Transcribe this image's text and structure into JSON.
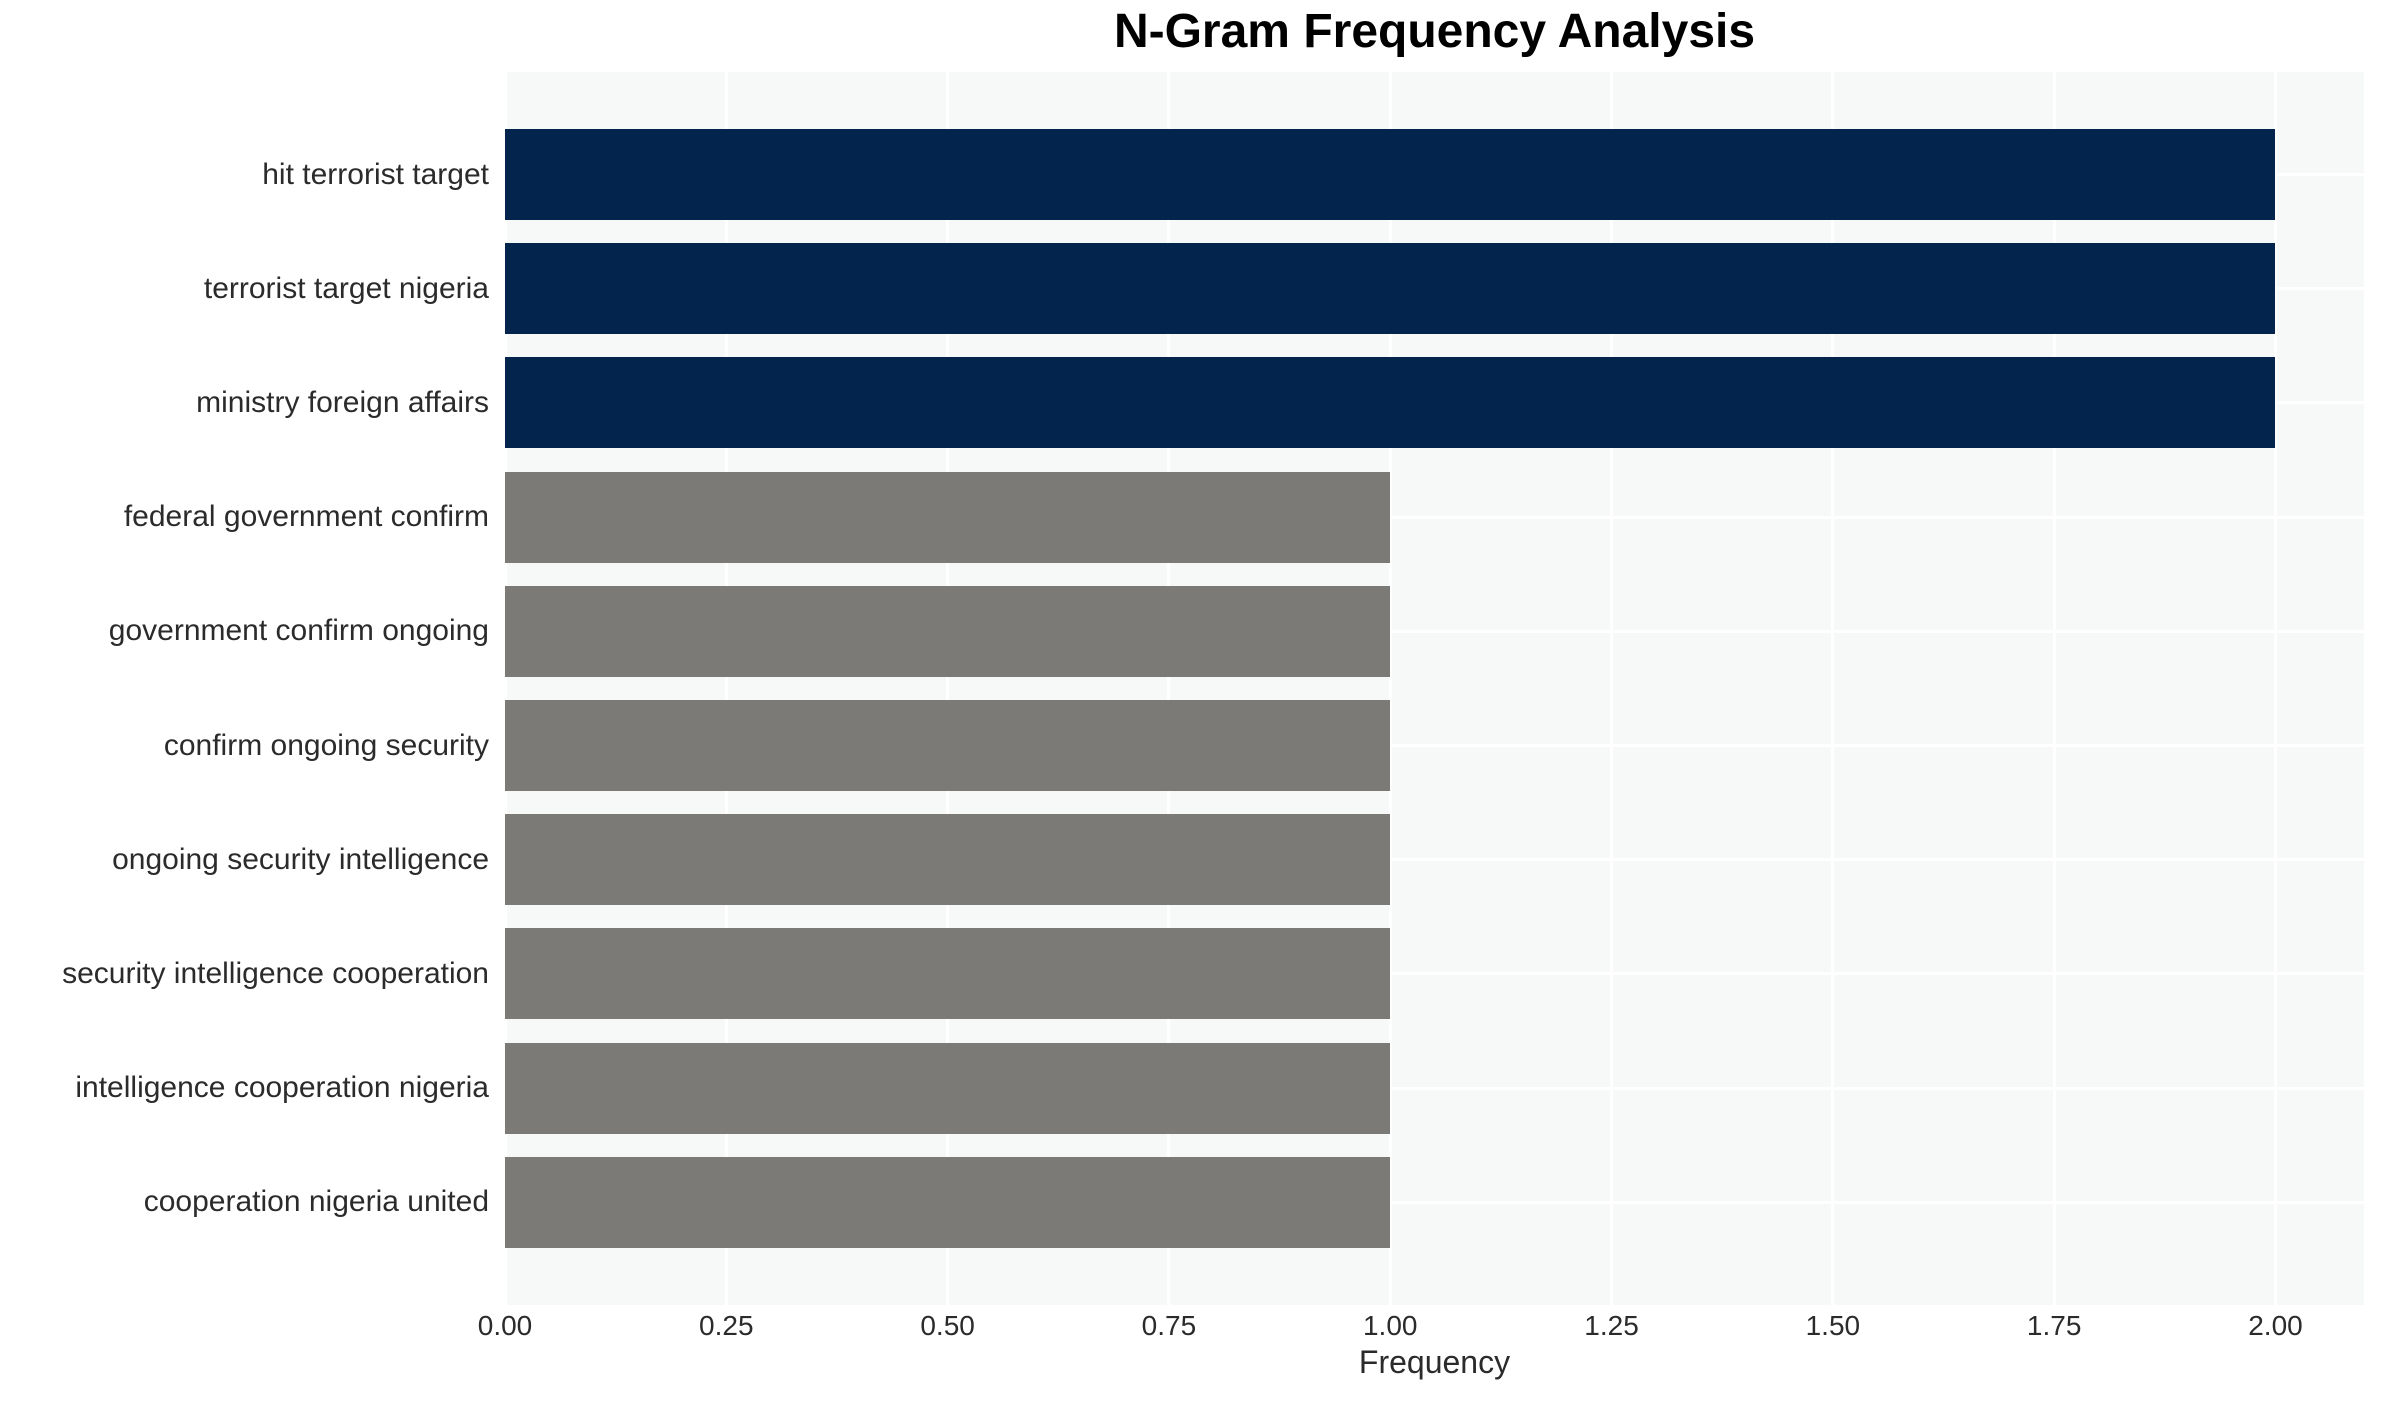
{
  "chart_data": {
    "type": "bar",
    "orientation": "horizontal",
    "title": "N-Gram Frequency Analysis",
    "xlabel": "Frequency",
    "ylabel": "",
    "categories": [
      "hit terrorist target",
      "terrorist target nigeria",
      "ministry foreign affairs",
      "federal government confirm",
      "government confirm ongoing",
      "confirm ongoing security",
      "ongoing security intelligence",
      "security intelligence cooperation",
      "intelligence cooperation nigeria",
      "cooperation nigeria united"
    ],
    "values": [
      2,
      2,
      2,
      1,
      1,
      1,
      1,
      1,
      1,
      1
    ],
    "xlim": [
      0,
      2.1
    ],
    "xticks": [
      {
        "value": 0.0,
        "label": "0.00"
      },
      {
        "value": 0.25,
        "label": "0.25"
      },
      {
        "value": 0.5,
        "label": "0.50"
      },
      {
        "value": 0.75,
        "label": "0.75"
      },
      {
        "value": 1.0,
        "label": "1.00"
      },
      {
        "value": 1.25,
        "label": "1.25"
      },
      {
        "value": 1.5,
        "label": "1.50"
      },
      {
        "value": 1.75,
        "label": "1.75"
      },
      {
        "value": 2.0,
        "label": "2.00"
      }
    ],
    "grid": true,
    "legend": "none",
    "colors": {
      "bar_by_value": {
        "2": "#02244d",
        "1": "#7b7a76"
      },
      "plot_background": "#f7f8f8",
      "gridline": "#ffffff",
      "title_text": "#000000",
      "label_text": "#2b2b2b"
    }
  }
}
